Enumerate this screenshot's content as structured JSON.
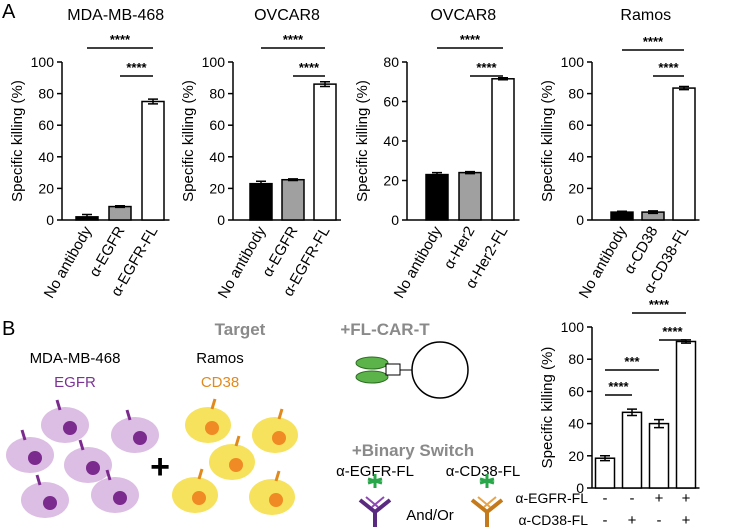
{
  "panel_labels": [
    "A",
    "B"
  ],
  "chart_data": [
    {
      "type": "bar",
      "title": "MDA-MB-468",
      "y_label": "Specific killing (%)",
      "categories": [
        "No antibody",
        "α-EGFR",
        "α-EGFR-FL"
      ],
      "values": [
        2,
        8.5,
        75
      ],
      "errors": [
        1.5,
        0.5,
        1.5
      ],
      "colors": [
        "#000000",
        "#a0a0a0",
        "#ffffff"
      ],
      "ylim": [
        0,
        100
      ],
      "yticks": [
        0,
        20,
        40,
        60,
        80,
        100
      ],
      "significance": [
        {
          "from": 0,
          "to": 2,
          "label": "****"
        },
        {
          "from": 1,
          "to": 2,
          "label": "****"
        }
      ]
    },
    {
      "type": "bar",
      "title": "OVCAR8",
      "y_label": "Specific killing (%)",
      "categories": [
        "No antibody",
        "α-EGFR",
        "α-EGFR-FL"
      ],
      "values": [
        23,
        25.5,
        86
      ],
      "errors": [
        1.5,
        0.5,
        1.5
      ],
      "colors": [
        "#000000",
        "#a0a0a0",
        "#ffffff"
      ],
      "ylim": [
        0,
        100
      ],
      "yticks": [
        0,
        20,
        40,
        60,
        80,
        100
      ],
      "significance": [
        {
          "from": 0,
          "to": 2,
          "label": "****"
        },
        {
          "from": 1,
          "to": 2,
          "label": "****"
        }
      ]
    },
    {
      "type": "bar",
      "title": "OVCAR8",
      "y_label": "Specific killing (%)",
      "categories": [
        "No antibody",
        "α-Her2",
        "α-Her2-FL"
      ],
      "values": [
        23,
        24,
        71.5
      ],
      "errors": [
        1,
        0.5,
        0.5
      ],
      "colors": [
        "#000000",
        "#a0a0a0",
        "#ffffff"
      ],
      "ylim": [
        0,
        80
      ],
      "yticks": [
        0,
        20,
        40,
        60,
        80
      ],
      "significance": [
        {
          "from": 0,
          "to": 2,
          "label": "****"
        },
        {
          "from": 1,
          "to": 2,
          "label": "****"
        }
      ]
    },
    {
      "type": "bar",
      "title": "Ramos",
      "y_label": "Specific killing (%)",
      "categories": [
        "No antibody",
        "α-CD38",
        "α-CD38-FL"
      ],
      "values": [
        5,
        5,
        83.5
      ],
      "errors": [
        0.5,
        0.8,
        1
      ],
      "colors": [
        "#000000",
        "#a0a0a0",
        "#ffffff"
      ],
      "ylim": [
        0,
        100
      ],
      "yticks": [
        0,
        20,
        40,
        60,
        80,
        100
      ],
      "significance": [
        {
          "from": 0,
          "to": 2,
          "label": "****"
        },
        {
          "from": 1,
          "to": 2,
          "label": "****"
        }
      ]
    },
    {
      "type": "bar",
      "y_label": "Specific killing (%)",
      "values": [
        18.5,
        47,
        40,
        91
      ],
      "errors": [
        1.5,
        2,
        2.5,
        1
      ],
      "colors": [
        "#ffffff",
        "#ffffff",
        "#ffffff",
        "#ffffff"
      ],
      "ylim": [
        0,
        100
      ],
      "yticks": [
        0,
        20,
        40,
        60,
        80,
        100
      ],
      "conditions": [
        {
          "name": "α-EGFR-FL",
          "values": [
            "-",
            "-",
            "+",
            "+"
          ]
        },
        {
          "name": "α-CD38-FL",
          "values": [
            "-",
            "+",
            "-",
            "+"
          ]
        }
      ],
      "significance": [
        {
          "from": 1,
          "to": 3,
          "label": "****"
        },
        {
          "from": 2,
          "to": 3,
          "label": "****"
        },
        {
          "from": 0,
          "to": 2,
          "label": "***"
        },
        {
          "from": 0,
          "to": 1,
          "label": "****"
        }
      ]
    }
  ],
  "diagram": {
    "target": "Target",
    "cell1": "MDA-MB-468",
    "antigen1": "EGFR",
    "cell2": "Ramos",
    "antigen2": "CD38",
    "plus": "+",
    "car_t": "+FL-CAR-T",
    "switch": "+Binary Switch",
    "switch1": "α-EGFR-FL",
    "switch2": "α-CD38-FL",
    "and_or": "And/Or"
  }
}
